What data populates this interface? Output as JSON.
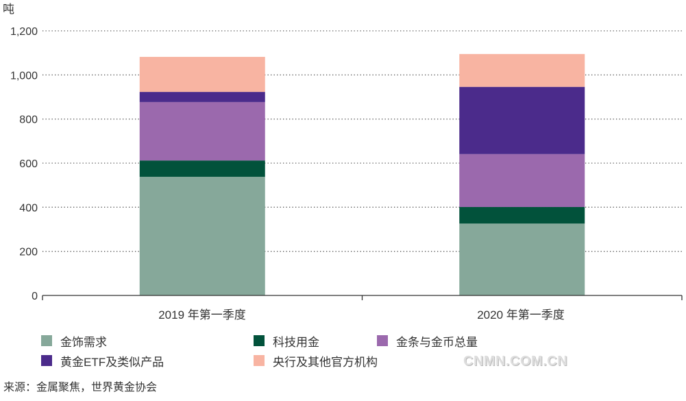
{
  "chart_data": {
    "type": "bar",
    "stacked": true,
    "title": "",
    "xlabel": "",
    "ylabel": "吨",
    "ylim": [
      0,
      1200
    ],
    "yticks": [
      0,
      200,
      400,
      600,
      800,
      1000,
      1200
    ],
    "ytick_labels": [
      "0",
      "200",
      "400",
      "600",
      "800",
      "1,000",
      "1,200"
    ],
    "categories": [
      "2019 年第一季度",
      "2020 年第一季度"
    ],
    "series": [
      {
        "name": "金饰需求",
        "color": "#86a89a",
        "values": [
          538,
          326
        ]
      },
      {
        "name": "科技用金",
        "color": "#02523b",
        "values": [
          74,
          75
        ]
      },
      {
        "name": "金条与金币总量",
        "color": "#9b69ad",
        "values": [
          265,
          240
        ]
      },
      {
        "name": "黄金ETF及类似产品",
        "color": "#4b2b8b",
        "values": [
          46,
          305
        ]
      },
      {
        "name": "央行及其他官方机构",
        "color": "#f8b4a2",
        "values": [
          159,
          149
        ]
      }
    ],
    "grid": true,
    "legend": "bottom"
  },
  "source": "来源：金属聚焦，世界黄金协会",
  "watermark": "CNMN.COM.CN"
}
